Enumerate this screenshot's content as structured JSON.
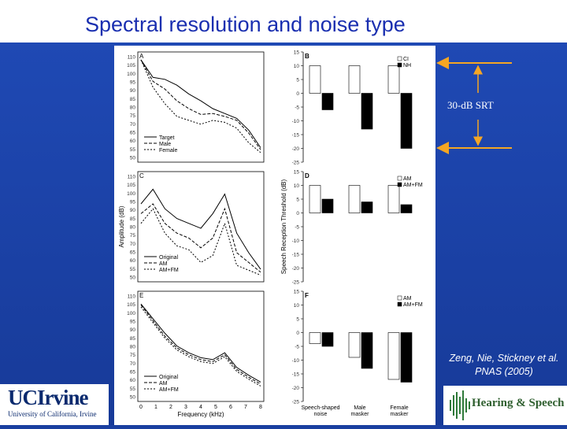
{
  "slide": {
    "title": "Spectral resolution and noise type",
    "annotation": "30-dB SRT",
    "citation_line1": "Zeng, Nie, Stickney et al.",
    "citation_line2": "PNAS (2005)"
  },
  "logos": {
    "uci_name": "UCIrvine",
    "uci_sub": "University of California, Irvine",
    "lab_name": "Hearing & Speech Lab"
  },
  "colors": {
    "slide_bg": "#1a3fa0",
    "title_text": "#1a2fb0",
    "annotation_arrow": "#f5a623"
  },
  "chart_data": [
    {
      "type": "line",
      "panel": "A",
      "xlabel": "",
      "ylabel": "",
      "y_ticks": [
        "110",
        "105",
        "100",
        "95",
        "90",
        "85",
        "80",
        "75",
        "70",
        "65",
        "60",
        "55",
        "50"
      ],
      "legend": [
        "Target",
        "Male",
        "Female"
      ]
    },
    {
      "type": "line",
      "panel": "C",
      "xlabel": "",
      "ylabel": "Amplitude (dB)",
      "y_ticks": [
        "110",
        "105",
        "100",
        "95",
        "90",
        "85",
        "80",
        "75",
        "70",
        "65",
        "60",
        "55",
        "50"
      ],
      "legend": [
        "Original",
        "AM",
        "AM+FM"
      ]
    },
    {
      "type": "line",
      "panel": "E",
      "xlabel": "Frequency (kHz)",
      "ylabel": "",
      "x_ticks": [
        "0",
        "1",
        "2",
        "3",
        "4",
        "5",
        "6",
        "7",
        "8"
      ],
      "y_ticks": [
        "110",
        "105",
        "100",
        "95",
        "90",
        "85",
        "80",
        "75",
        "70",
        "65",
        "60",
        "55",
        "50"
      ],
      "legend": [
        "Original",
        "AM",
        "AM+FM"
      ]
    },
    {
      "type": "bar",
      "panel": "B",
      "ylim": [
        -25,
        15
      ],
      "y_ticks": [
        "15",
        "10",
        "5",
        "0",
        "-5",
        "-10",
        "-15",
        "-20",
        "-25"
      ],
      "categories": [
        "Speech-shaped noise",
        "Male masker",
        "Female masker"
      ],
      "legend": [
        "CI",
        "NH"
      ],
      "series": [
        {
          "name": "CI",
          "values": [
            10,
            10,
            10
          ]
        },
        {
          "name": "NH",
          "values": [
            -6,
            -13,
            -20
          ]
        }
      ]
    },
    {
      "type": "bar",
      "panel": "D",
      "ylabel": "Speech Reception Threshold (dB)",
      "ylim": [
        -25,
        15
      ],
      "y_ticks": [
        "15",
        "10",
        "5",
        "0",
        "-5",
        "-10",
        "-15",
        "-20",
        "-25"
      ],
      "categories": [
        "Speech-shaped noise",
        "Male masker",
        "Female masker"
      ],
      "legend": [
        "AM",
        "AM+FM"
      ],
      "series": [
        {
          "name": "AM",
          "values": [
            10,
            10,
            10
          ]
        },
        {
          "name": "AM+FM",
          "values": [
            5,
            4,
            3
          ]
        }
      ]
    },
    {
      "type": "bar",
      "panel": "F",
      "ylim": [
        -25,
        15
      ],
      "y_ticks": [
        "15",
        "10",
        "5",
        "0",
        "-5",
        "-10",
        "-15",
        "-20",
        "-25"
      ],
      "categories": [
        "Speech-shaped noise",
        "Male masker",
        "Female masker"
      ],
      "legend": [
        "AM",
        "AM+FM"
      ],
      "series": [
        {
          "name": "AM",
          "values": [
            -4,
            -9,
            -17
          ]
        },
        {
          "name": "AM+FM",
          "values": [
            -5,
            -13,
            -18
          ]
        }
      ]
    }
  ]
}
